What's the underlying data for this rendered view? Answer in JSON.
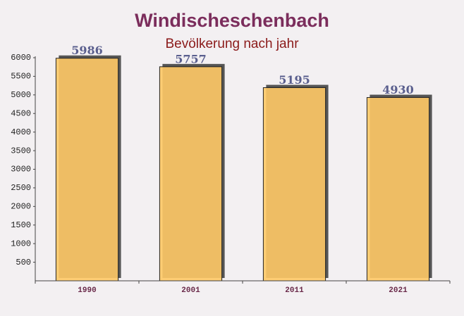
{
  "chart_data": {
    "type": "bar",
    "title": "Windischeschenbach",
    "subtitle": "Bevölkerung nach jahr",
    "categories": [
      "1990",
      "2001",
      "2011",
      "2021"
    ],
    "values": [
      5986,
      5757,
      5195,
      4930
    ],
    "color": "#ffc966",
    "ylim": [
      0,
      6000
    ],
    "yticks": [
      500,
      1000,
      1500,
      2000,
      2500,
      3000,
      3500,
      4000,
      4500,
      5000,
      5500,
      6000
    ]
  }
}
